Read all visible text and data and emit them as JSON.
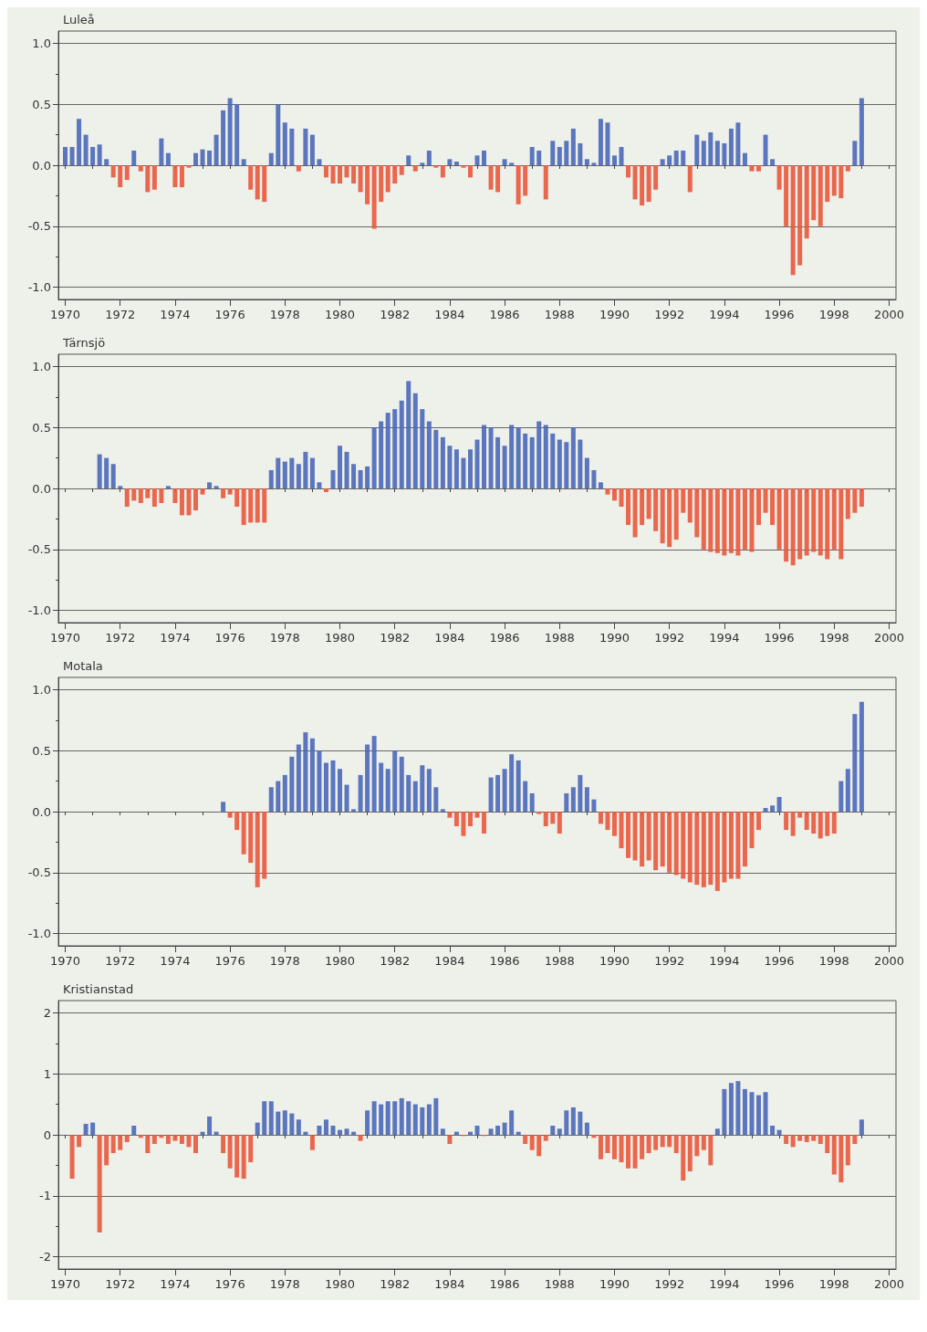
{
  "chart_data": [
    {
      "type": "bar",
      "title": "Luleå",
      "grid": "y",
      "xlim": [
        1969.75,
        2000.25
      ],
      "ylim": [
        -1.1,
        1.1
      ],
      "xticks": [
        1970,
        {
          "value": 1971,
          "label": null
        },
        1972,
        {
          "value": 1973,
          "label": null
        },
        1974,
        {
          "value": 1975,
          "label": null
        },
        1976,
        {
          "value": 1977,
          "label": null
        },
        1978,
        {
          "value": 1979,
          "label": null
        },
        1980,
        {
          "value": 1981,
          "label": null
        },
        1982,
        {
          "value": 1983,
          "label": null
        },
        1984,
        {
          "value": 1985,
          "label": null
        },
        1986,
        {
          "value": 1987,
          "label": null
        },
        1988,
        {
          "value": 1989,
          "label": null
        },
        1990,
        {
          "value": 1991,
          "label": null
        },
        1992,
        {
          "value": 1993,
          "label": null
        },
        1994,
        {
          "value": 1995,
          "label": null
        },
        1996,
        {
          "value": 1997,
          "label": null
        },
        1998,
        {
          "value": 1999,
          "label": null
        },
        2000
      ],
      "yticks": [
        {
          "value": -1,
          "label": "-1.0"
        },
        {
          "value": -0.75,
          "label": null
        },
        {
          "value": -0.5,
          "label": "-0.5"
        },
        {
          "value": -0.25,
          "label": null
        },
        {
          "value": 0,
          "label": "0.0"
        },
        {
          "value": 0.25,
          "label": null
        },
        {
          "value": 0.5,
          "label": "0.5"
        },
        {
          "value": 0.75,
          "label": null
        },
        {
          "value": 1,
          "label": "1.0"
        }
      ],
      "x": [
        1970,
        1970.25,
        1970.5,
        1970.75,
        1971,
        1971.25,
        1971.5,
        1971.75,
        1972,
        1972.25,
        1972.5,
        1972.75,
        1973,
        1973.25,
        1973.5,
        1973.75,
        1974,
        1974.25,
        1974.5,
        1974.75,
        1975,
        1975.25,
        1975.5,
        1975.75,
        1976,
        1976.25,
        1976.5,
        1976.75,
        1977,
        1977.25,
        1977.5,
        1977.75,
        1978,
        1978.25,
        1978.5,
        1978.75,
        1979,
        1979.25,
        1979.5,
        1979.75,
        1980,
        1980.25,
        1980.5,
        1980.75,
        1981,
        1981.25,
        1981.5,
        1981.75,
        1982,
        1982.25,
        1982.5,
        1982.75,
        1983,
        1983.25,
        1983.5,
        1983.75,
        1984,
        1984.25,
        1984.5,
        1984.75,
        1985,
        1985.25,
        1985.5,
        1985.75,
        1986,
        1986.25,
        1986.5,
        1986.75,
        1987,
        1987.25,
        1987.5,
        1987.75,
        1988,
        1988.25,
        1988.5,
        1988.75,
        1989,
        1989.25,
        1989.5,
        1989.75,
        1990,
        1990.25,
        1990.5,
        1990.75,
        1991,
        1991.25,
        1991.5,
        1991.75,
        1992,
        1992.25,
        1992.5,
        1992.75,
        1993,
        1993.25,
        1993.5,
        1993.75,
        1994,
        1994.25,
        1994.5,
        1994.75,
        1995,
        1995.25,
        1995.5,
        1995.75,
        1996,
        1996.25,
        1996.5,
        1996.75,
        1997,
        1997.25,
        1997.5,
        1997.75,
        1998,
        1998.25,
        1998.5,
        1998.75,
        1999
      ],
      "series": [
        {
          "color": "#4a68b8",
          "values": [
            0.15,
            0.15,
            0.38,
            0.25,
            0.15,
            0.17,
            0.05,
            null,
            null,
            null,
            0.12,
            null,
            null,
            null,
            0.22,
            0.1,
            null,
            null,
            null,
            0.1,
            0.13,
            0.12,
            0.25,
            0.45,
            0.55,
            0.5,
            0.05,
            null,
            null,
            null,
            0.1,
            0.5,
            0.35,
            0.3,
            null,
            0.3,
            0.25,
            0.05,
            null,
            null,
            null,
            null,
            null,
            null,
            null,
            null,
            null,
            null,
            null,
            null,
            0.08,
            null,
            0.02,
            0.12,
            null,
            null,
            0.05,
            0.03,
            null,
            null,
            0.08,
            0.12,
            null,
            null,
            0.05,
            0.02,
            null,
            null,
            0.15,
            0.12,
            null,
            0.2,
            0.15,
            0.2,
            0.3,
            0.18,
            0.05,
            0.02,
            0.38,
            0.35,
            0.08,
            0.15,
            null,
            null,
            null,
            null,
            null,
            0.05,
            0.08,
            0.12,
            0.12,
            null,
            0.25,
            0.2,
            0.27,
            0.2,
            0.18,
            0.3,
            0.35,
            0.1,
            null,
            null,
            0.25,
            0.05,
            null,
            null,
            null,
            null,
            null,
            null,
            null,
            null,
            null,
            null,
            null,
            0.2,
            0.55
          ]
        },
        {
          "color": "#e8583c",
          "values": [
            null,
            null,
            null,
            null,
            null,
            null,
            null,
            -0.1,
            -0.18,
            -0.12,
            null,
            -0.05,
            -0.22,
            -0.2,
            null,
            null,
            -0.18,
            -0.18,
            -0.02,
            null,
            null,
            null,
            null,
            null,
            null,
            null,
            null,
            -0.2,
            -0.28,
            -0.3,
            null,
            null,
            null,
            null,
            -0.05,
            null,
            null,
            null,
            -0.1,
            -0.15,
            -0.15,
            -0.1,
            -0.15,
            -0.22,
            -0.32,
            -0.52,
            -0.3,
            -0.22,
            -0.15,
            -0.08,
            null,
            -0.05,
            null,
            null,
            -0.02,
            -0.1,
            null,
            null,
            -0.02,
            -0.1,
            null,
            null,
            -0.2,
            -0.22,
            null,
            null,
            -0.32,
            -0.25,
            null,
            null,
            -0.28,
            null,
            null,
            null,
            null,
            null,
            null,
            null,
            null,
            null,
            null,
            null,
            -0.1,
            -0.28,
            -0.33,
            -0.3,
            -0.2,
            null,
            null,
            null,
            null,
            -0.22,
            null,
            null,
            null,
            null,
            null,
            null,
            null,
            null,
            -0.05,
            -0.05,
            null,
            null,
            -0.2,
            -0.5,
            -0.9,
            -0.82,
            -0.6,
            -0.45,
            -0.5,
            -0.3,
            -0.25,
            -0.27,
            -0.05,
            null,
            null
          ]
        }
      ]
    },
    {
      "type": "bar",
      "title": "Tärnsjö",
      "grid": "y",
      "xlim": [
        1969.75,
        2000.25
      ],
      "ylim": [
        -1.1,
        1.1
      ],
      "xticks": [
        1970,
        {
          "value": 1971,
          "label": null
        },
        1972,
        {
          "value": 1973,
          "label": null
        },
        1974,
        {
          "value": 1975,
          "label": null
        },
        1976,
        {
          "value": 1977,
          "label": null
        },
        1978,
        {
          "value": 1979,
          "label": null
        },
        1980,
        {
          "value": 1981,
          "label": null
        },
        1982,
        {
          "value": 1983,
          "label": null
        },
        1984,
        {
          "value": 1985,
          "label": null
        },
        1986,
        {
          "value": 1987,
          "label": null
        },
        1988,
        {
          "value": 1989,
          "label": null
        },
        1990,
        {
          "value": 1991,
          "label": null
        },
        1992,
        {
          "value": 1993,
          "label": null
        },
        1994,
        {
          "value": 1995,
          "label": null
        },
        1996,
        {
          "value": 1997,
          "label": null
        },
        1998,
        {
          "value": 1999,
          "label": null
        },
        2000
      ],
      "yticks": [
        {
          "value": -1,
          "label": "-1.0"
        },
        {
          "value": -0.75,
          "label": null
        },
        {
          "value": -0.5,
          "label": "-0.5"
        },
        {
          "value": -0.25,
          "label": null
        },
        {
          "value": 0,
          "label": "0.0"
        },
        {
          "value": 0.25,
          "label": null
        },
        {
          "value": 0.5,
          "label": "0.5"
        },
        {
          "value": 0.75,
          "label": null
        },
        {
          "value": 1,
          "label": "1.0"
        }
      ],
      "x": [
        1971.25,
        1971.5,
        1971.75,
        1972,
        1972.25,
        1972.5,
        1972.75,
        1973,
        1973.25,
        1973.5,
        1973.75,
        1974,
        1974.25,
        1974.5,
        1974.75,
        1975,
        1975.25,
        1975.5,
        1975.75,
        1976,
        1976.25,
        1976.5,
        1976.75,
        1977,
        1977.25,
        1977.5,
        1977.75,
        1978,
        1978.25,
        1978.5,
        1978.75,
        1979,
        1979.25,
        1979.5,
        1979.75,
        1980,
        1980.25,
        1980.5,
        1980.75,
        1981,
        1981.25,
        1981.5,
        1981.75,
        1982,
        1982.25,
        1982.5,
        1982.75,
        1983,
        1983.25,
        1983.5,
        1983.75,
        1984,
        1984.25,
        1984.5,
        1984.75,
        1985,
        1985.25,
        1985.5,
        1985.75,
        1986,
        1986.25,
        1986.5,
        1986.75,
        1987,
        1987.25,
        1987.5,
        1987.75,
        1988,
        1988.25,
        1988.5,
        1988.75,
        1989,
        1989.25,
        1989.5,
        1989.75,
        1990,
        1990.25,
        1990.5,
        1990.75,
        1991,
        1991.25,
        1991.5,
        1991.75,
        1992,
        1992.25,
        1992.5,
        1992.75,
        1993,
        1993.25,
        1993.5,
        1993.75,
        1994,
        1994.25,
        1994.5,
        1994.75,
        1995,
        1995.25,
        1995.5,
        1995.75,
        1996,
        1996.25,
        1996.5,
        1996.75,
        1997,
        1997.25,
        1997.5,
        1997.75,
        1998,
        1998.25,
        1998.5,
        1998.75,
        1999
      ],
      "series": [
        {
          "color": "#4a68b8",
          "values": [
            0.28,
            0.25,
            0.2,
            0.02,
            null,
            null,
            null,
            null,
            null,
            null,
            0.02,
            null,
            null,
            null,
            null,
            null,
            0.05,
            0.02,
            null,
            null,
            null,
            null,
            null,
            null,
            null,
            0.15,
            0.25,
            0.22,
            0.25,
            0.2,
            0.3,
            0.25,
            0.05,
            null,
            0.15,
            0.35,
            0.3,
            0.2,
            0.15,
            0.18,
            0.5,
            0.55,
            0.62,
            0.65,
            0.72,
            0.88,
            0.78,
            0.65,
            0.55,
            0.48,
            0.42,
            0.35,
            0.32,
            0.25,
            0.32,
            0.4,
            0.52,
            0.5,
            0.42,
            0.35,
            0.52,
            0.5,
            0.45,
            0.42,
            0.55,
            0.52,
            0.45,
            0.4,
            0.38,
            0.5,
            0.4,
            0.25,
            0.15,
            0.05,
            null,
            null,
            null,
            null,
            null,
            null,
            null,
            null,
            null,
            null,
            null,
            null,
            null,
            null,
            null,
            null,
            null,
            null,
            null,
            null,
            null,
            null,
            null,
            null,
            null,
            null,
            null,
            null,
            null,
            null,
            null,
            null,
            null,
            null,
            null,
            null,
            null,
            null
          ]
        },
        {
          "color": "#e8583c",
          "values": [
            null,
            null,
            null,
            null,
            -0.15,
            -0.1,
            -0.12,
            -0.08,
            -0.15,
            -0.12,
            null,
            -0.12,
            -0.22,
            -0.22,
            -0.18,
            -0.05,
            null,
            null,
            -0.08,
            -0.05,
            -0.15,
            -0.3,
            -0.28,
            -0.28,
            -0.28,
            null,
            null,
            null,
            null,
            null,
            null,
            null,
            null,
            -0.03,
            null,
            null,
            null,
            null,
            null,
            null,
            null,
            null,
            null,
            null,
            null,
            null,
            null,
            null,
            null,
            null,
            null,
            null,
            null,
            null,
            null,
            null,
            null,
            null,
            null,
            null,
            null,
            null,
            null,
            null,
            null,
            null,
            null,
            null,
            null,
            null,
            null,
            null,
            null,
            null,
            -0.05,
            -0.1,
            -0.15,
            -0.3,
            -0.4,
            -0.3,
            -0.25,
            -0.35,
            -0.45,
            -0.48,
            -0.42,
            -0.2,
            -0.28,
            -0.4,
            -0.5,
            -0.52,
            -0.53,
            -0.55,
            -0.53,
            -0.55,
            -0.5,
            -0.52,
            -0.3,
            -0.2,
            -0.3,
            -0.5,
            -0.6,
            -0.63,
            -0.58,
            -0.55,
            -0.52,
            -0.55,
            -0.58,
            -0.5,
            -0.58,
            -0.25,
            -0.2,
            -0.15
          ]
        }
      ]
    },
    {
      "type": "bar",
      "title": "Motala",
      "grid": "y",
      "xlim": [
        1969.75,
        2000.25
      ],
      "ylim": [
        -1.1,
        1.1
      ],
      "xticks": [
        1970,
        {
          "value": 1971,
          "label": null
        },
        1972,
        {
          "value": 1973,
          "label": null
        },
        1974,
        {
          "value": 1975,
          "label": null
        },
        1976,
        {
          "value": 1977,
          "label": null
        },
        1978,
        {
          "value": 1979,
          "label": null
        },
        1980,
        {
          "value": 1981,
          "label": null
        },
        1982,
        {
          "value": 1983,
          "label": null
        },
        1984,
        {
          "value": 1985,
          "label": null
        },
        1986,
        {
          "value": 1987,
          "label": null
        },
        1988,
        {
          "value": 1989,
          "label": null
        },
        1990,
        {
          "value": 1991,
          "label": null
        },
        1992,
        {
          "value": 1993,
          "label": null
        },
        1994,
        {
          "value": 1995,
          "label": null
        },
        1996,
        {
          "value": 1997,
          "label": null
        },
        1998,
        {
          "value": 1999,
          "label": null
        },
        2000
      ],
      "yticks": [
        {
          "value": -1,
          "label": "-1.0"
        },
        {
          "value": -0.75,
          "label": null
        },
        {
          "value": -0.5,
          "label": "-0.5"
        },
        {
          "value": -0.25,
          "label": null
        },
        {
          "value": 0,
          "label": "0.0"
        },
        {
          "value": 0.25,
          "label": null
        },
        {
          "value": 0.5,
          "label": "0.5"
        },
        {
          "value": 0.75,
          "label": null
        },
        {
          "value": 1,
          "label": "1.0"
        }
      ],
      "x": [
        1975.75,
        1976,
        1976.25,
        1976.5,
        1976.75,
        1977,
        1977.25,
        1977.5,
        1977.75,
        1978,
        1978.25,
        1978.5,
        1978.75,
        1979,
        1979.25,
        1979.5,
        1979.75,
        1980,
        1980.25,
        1980.5,
        1980.75,
        1981,
        1981.25,
        1981.5,
        1981.75,
        1982,
        1982.25,
        1982.5,
        1982.75,
        1983,
        1983.25,
        1983.5,
        1983.75,
        1984,
        1984.25,
        1984.5,
        1984.75,
        1985,
        1985.25,
        1985.5,
        1985.75,
        1986,
        1986.25,
        1986.5,
        1986.75,
        1987,
        1987.25,
        1987.5,
        1987.75,
        1988,
        1988.25,
        1988.5,
        1988.75,
        1989,
        1989.25,
        1989.5,
        1989.75,
        1990,
        1990.25,
        1990.5,
        1990.75,
        1991,
        1991.25,
        1991.5,
        1991.75,
        1992,
        1992.25,
        1992.5,
        1992.75,
        1993,
        1993.25,
        1993.5,
        1993.75,
        1994,
        1994.25,
        1994.5,
        1994.75,
        1995,
        1995.25,
        1995.5,
        1995.75,
        1996,
        1996.25,
        1996.5,
        1996.75,
        1997,
        1997.25,
        1997.5,
        1997.75,
        1998,
        1998.25,
        1998.5,
        1998.75,
        1999
      ],
      "series": [
        {
          "color": "#4a68b8",
          "values": [
            0.08,
            null,
            null,
            null,
            null,
            null,
            null,
            0.2,
            0.25,
            0.3,
            0.45,
            0.55,
            0.65,
            0.6,
            0.5,
            0.4,
            0.42,
            0.35,
            0.22,
            0.02,
            0.3,
            0.55,
            0.62,
            0.4,
            0.35,
            0.5,
            0.45,
            0.3,
            0.25,
            0.38,
            0.35,
            0.2,
            0.02,
            null,
            null,
            null,
            null,
            null,
            null,
            0.28,
            0.3,
            0.35,
            0.47,
            0.42,
            0.25,
            0.15,
            null,
            null,
            null,
            null,
            0.15,
            0.2,
            0.3,
            0.2,
            0.1,
            null,
            null,
            null,
            null,
            null,
            null,
            null,
            null,
            null,
            null,
            null,
            null,
            null,
            null,
            null,
            null,
            null,
            null,
            null,
            null,
            null,
            null,
            null,
            null,
            0.03,
            0.05,
            0.12,
            null,
            null,
            null,
            null,
            null,
            null,
            null,
            null,
            0.25,
            0.35,
            0.8,
            0.9
          ]
        },
        {
          "color": "#e8583c",
          "values": [
            null,
            -0.05,
            -0.15,
            -0.35,
            -0.42,
            -0.62,
            -0.55,
            null,
            null,
            null,
            null,
            null,
            null,
            null,
            null,
            null,
            null,
            null,
            null,
            null,
            null,
            null,
            null,
            null,
            null,
            null,
            null,
            null,
            null,
            null,
            null,
            null,
            null,
            -0.05,
            -0.12,
            -0.2,
            -0.12,
            -0.05,
            -0.18,
            null,
            null,
            null,
            null,
            null,
            null,
            null,
            -0.02,
            -0.12,
            -0.1,
            -0.18,
            null,
            null,
            null,
            null,
            null,
            -0.1,
            -0.15,
            -0.2,
            -0.3,
            -0.38,
            -0.4,
            -0.45,
            -0.4,
            -0.48,
            -0.45,
            -0.5,
            -0.52,
            -0.55,
            -0.58,
            -0.6,
            -0.62,
            -0.6,
            -0.65,
            -0.58,
            -0.55,
            -0.55,
            -0.45,
            -0.3,
            -0.15,
            null,
            null,
            null,
            -0.15,
            -0.2,
            -0.05,
            -0.15,
            -0.18,
            -0.22,
            -0.2,
            -0.18,
            null,
            null,
            null,
            null
          ]
        }
      ]
    },
    {
      "type": "bar",
      "title": "Kristianstad",
      "grid": "y",
      "xlim": [
        1969.75,
        2000.25
      ],
      "ylim": [
        -2.2,
        2.2
      ],
      "xticks": [
        1970,
        {
          "value": 1971,
          "label": null
        },
        1972,
        {
          "value": 1973,
          "label": null
        },
        1974,
        {
          "value": 1975,
          "label": null
        },
        1976,
        {
          "value": 1977,
          "label": null
        },
        1978,
        {
          "value": 1979,
          "label": null
        },
        1980,
        {
          "value": 1981,
          "label": null
        },
        1982,
        {
          "value": 1983,
          "label": null
        },
        1984,
        {
          "value": 1985,
          "label": null
        },
        1986,
        {
          "value": 1987,
          "label": null
        },
        1988,
        {
          "value": 1989,
          "label": null
        },
        1990,
        {
          "value": 1991,
          "label": null
        },
        1992,
        {
          "value": 1993,
          "label": null
        },
        1994,
        {
          "value": 1995,
          "label": null
        },
        1996,
        {
          "value": 1997,
          "label": null
        },
        1998,
        {
          "value": 1999,
          "label": null
        },
        2000
      ],
      "yticks": [
        -2,
        {
          "value": -1.5,
          "label": null
        },
        -1,
        {
          "value": -0.5,
          "label": null
        },
        0,
        {
          "value": 0.5,
          "label": null
        },
        1,
        {
          "value": 1.5,
          "label": null
        },
        2
      ],
      "x": [
        1970.25,
        1970.5,
        1970.75,
        1971,
        1971.25,
        1971.5,
        1971.75,
        1972,
        1972.25,
        1972.5,
        1972.75,
        1973,
        1973.25,
        1973.5,
        1973.75,
        1974,
        1974.25,
        1974.5,
        1974.75,
        1975,
        1975.25,
        1975.5,
        1975.75,
        1976,
        1976.25,
        1976.5,
        1976.75,
        1977,
        1977.25,
        1977.5,
        1977.75,
        1978,
        1978.25,
        1978.5,
        1978.75,
        1979,
        1979.25,
        1979.5,
        1979.75,
        1980,
        1980.25,
        1980.5,
        1980.75,
        1981,
        1981.25,
        1981.5,
        1981.75,
        1982,
        1982.25,
        1982.5,
        1982.75,
        1983,
        1983.25,
        1983.5,
        1983.75,
        1984,
        1984.25,
        1984.5,
        1984.75,
        1985,
        1985.25,
        1985.5,
        1985.75,
        1986,
        1986.25,
        1986.5,
        1986.75,
        1987,
        1987.25,
        1987.5,
        1987.75,
        1988,
        1988.25,
        1988.5,
        1988.75,
        1989,
        1989.25,
        1989.5,
        1989.75,
        1990,
        1990.25,
        1990.5,
        1990.75,
        1991,
        1991.25,
        1991.5,
        1991.75,
        1992,
        1992.25,
        1992.5,
        1992.75,
        1993,
        1993.25,
        1993.5,
        1993.75,
        1994,
        1994.25,
        1994.5,
        1994.75,
        1995,
        1995.25,
        1995.5,
        1995.75,
        1996,
        1996.25,
        1996.5,
        1996.75,
        1997,
        1997.25,
        1997.5,
        1997.75,
        1998,
        1998.25,
        1998.5,
        1998.75,
        1999
      ],
      "series": [
        {
          "color": "#4a68b8",
          "values": [
            null,
            null,
            0.18,
            0.2,
            null,
            null,
            null,
            null,
            null,
            0.15,
            null,
            null,
            null,
            null,
            null,
            null,
            null,
            null,
            null,
            0.05,
            0.3,
            0.05,
            null,
            null,
            null,
            null,
            null,
            0.2,
            0.55,
            0.55,
            0.38,
            0.4,
            0.35,
            0.25,
            0.05,
            null,
            0.15,
            0.25,
            0.15,
            0.08,
            0.1,
            0.05,
            null,
            0.4,
            0.55,
            0.5,
            0.55,
            0.55,
            0.6,
            0.55,
            0.5,
            0.45,
            0.5,
            0.6,
            0.1,
            null,
            0.05,
            null,
            0.05,
            0.15,
            null,
            0.1,
            0.15,
            0.2,
            0.4,
            0.05,
            null,
            null,
            null,
            null,
            0.15,
            0.1,
            0.4,
            0.45,
            0.38,
            0.2,
            null,
            null,
            null,
            null,
            null,
            null,
            null,
            null,
            null,
            null,
            null,
            null,
            null,
            null,
            null,
            null,
            null,
            null,
            0.1,
            0.75,
            0.85,
            0.88,
            0.75,
            0.7,
            0.65,
            0.7,
            0.15,
            0.08,
            null,
            null,
            null,
            null,
            null,
            null,
            null,
            null,
            null,
            null,
            null,
            0.25
          ]
        },
        {
          "color": "#e8583c",
          "values": [
            -0.72,
            -0.2,
            null,
            null,
            -1.6,
            -0.5,
            -0.3,
            -0.25,
            -0.12,
            null,
            -0.05,
            -0.3,
            -0.15,
            -0.05,
            -0.15,
            -0.1,
            -0.15,
            -0.2,
            -0.3,
            null,
            null,
            null,
            -0.3,
            -0.55,
            -0.7,
            -0.72,
            -0.45,
            null,
            null,
            null,
            null,
            null,
            null,
            null,
            null,
            -0.25,
            null,
            null,
            null,
            null,
            null,
            null,
            -0.1,
            null,
            null,
            null,
            null,
            null,
            null,
            null,
            null,
            null,
            null,
            null,
            null,
            -0.15,
            null,
            -0.02,
            null,
            null,
            -0.02,
            null,
            null,
            null,
            null,
            null,
            -0.15,
            -0.25,
            -0.35,
            -0.1,
            null,
            null,
            null,
            null,
            null,
            null,
            -0.05,
            -0.4,
            -0.3,
            -0.4,
            -0.45,
            -0.55,
            -0.55,
            -0.4,
            -0.3,
            -0.25,
            -0.2,
            -0.2,
            -0.3,
            -0.75,
            -0.6,
            -0.35,
            -0.25,
            -0.5,
            null,
            null,
            null,
            null,
            null,
            null,
            null,
            null,
            null,
            null,
            -0.15,
            -0.2,
            -0.1,
            -0.12,
            -0.1,
            -0.15,
            -0.3,
            -0.65,
            -0.78,
            -0.5,
            -0.15,
            null
          ]
        }
      ]
    }
  ]
}
